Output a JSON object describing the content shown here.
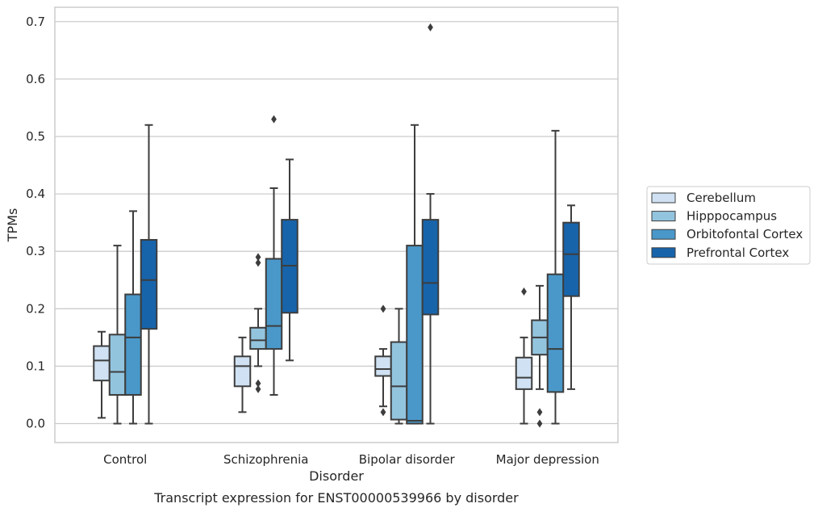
{
  "chart_data": {
    "type": "box",
    "xlabel": "Disorder",
    "ylabel": "TPMs",
    "caption": "Transcript expression for ENST00000539966 by disorder",
    "categories": [
      "Control",
      "Schizophrenia",
      "Bipolar disorder",
      "Major depression"
    ],
    "ylim": [
      -0.033,
      0.725
    ],
    "yticks": [
      "0.0",
      "0.1",
      "0.2",
      "0.3",
      "0.4",
      "0.5",
      "0.6",
      "0.7"
    ],
    "grid": "horizontal",
    "legend_position": "right",
    "series": [
      {
        "name": "Cerebellum",
        "color": "#cfe1f2",
        "boxes": [
          {
            "whisker_low": 0.01,
            "q1": 0.075,
            "median": 0.11,
            "q3": 0.135,
            "whisker_high": 0.16,
            "outliers": []
          },
          {
            "whisker_low": 0.02,
            "q1": 0.065,
            "median": 0.1,
            "q3": 0.117,
            "whisker_high": 0.15,
            "outliers": []
          },
          {
            "whisker_low": 0.03,
            "q1": 0.083,
            "median": 0.095,
            "q3": 0.117,
            "whisker_high": 0.13,
            "outliers": [
              0.02,
              0.2
            ]
          },
          {
            "whisker_low": 0.0,
            "q1": 0.06,
            "median": 0.08,
            "q3": 0.115,
            "whisker_high": 0.15,
            "outliers": [
              0.23
            ]
          }
        ]
      },
      {
        "name": "Hipppocampus",
        "color": "#93c4de",
        "boxes": [
          {
            "whisker_low": 0.0,
            "q1": 0.05,
            "median": 0.09,
            "q3": 0.155,
            "whisker_high": 0.31,
            "outliers": []
          },
          {
            "whisker_low": 0.1,
            "q1": 0.13,
            "median": 0.145,
            "q3": 0.167,
            "whisker_high": 0.2,
            "outliers": [
              0.06,
              0.07,
              0.28,
              0.29
            ]
          },
          {
            "whisker_low": 0.0,
            "q1": 0.007,
            "median": 0.065,
            "q3": 0.142,
            "whisker_high": 0.2,
            "outliers": []
          },
          {
            "whisker_low": 0.06,
            "q1": 0.12,
            "median": 0.15,
            "q3": 0.18,
            "whisker_high": 0.24,
            "outliers": [
              0.0,
              0.02
            ]
          }
        ]
      },
      {
        "name": "Orbitofontal Cortex",
        "color": "#4a98c9",
        "boxes": [
          {
            "whisker_low": 0.0,
            "q1": 0.05,
            "median": 0.15,
            "q3": 0.225,
            "whisker_high": 0.37,
            "outliers": []
          },
          {
            "whisker_low": 0.05,
            "q1": 0.13,
            "median": 0.17,
            "q3": 0.287,
            "whisker_high": 0.41,
            "outliers": [
              0.53
            ]
          },
          {
            "whisker_low": 0.0,
            "q1": 0.0,
            "median": 0.005,
            "q3": 0.31,
            "whisker_high": 0.52,
            "outliers": []
          },
          {
            "whisker_low": 0.0,
            "q1": 0.055,
            "median": 0.13,
            "q3": 0.26,
            "whisker_high": 0.51,
            "outliers": []
          }
        ]
      },
      {
        "name": "Prefrontal Cortex",
        "color": "#1764ab",
        "boxes": [
          {
            "whisker_low": 0.0,
            "q1": 0.165,
            "median": 0.25,
            "q3": 0.32,
            "whisker_high": 0.52,
            "outliers": []
          },
          {
            "whisker_low": 0.11,
            "q1": 0.193,
            "median": 0.275,
            "q3": 0.355,
            "whisker_high": 0.46,
            "outliers": []
          },
          {
            "whisker_low": 0.0,
            "q1": 0.19,
            "median": 0.245,
            "q3": 0.355,
            "whisker_high": 0.4,
            "outliers": [
              0.69
            ]
          },
          {
            "whisker_low": 0.06,
            "q1": 0.222,
            "median": 0.295,
            "q3": 0.35,
            "whisker_high": 0.38,
            "outliers": []
          }
        ]
      }
    ]
  }
}
